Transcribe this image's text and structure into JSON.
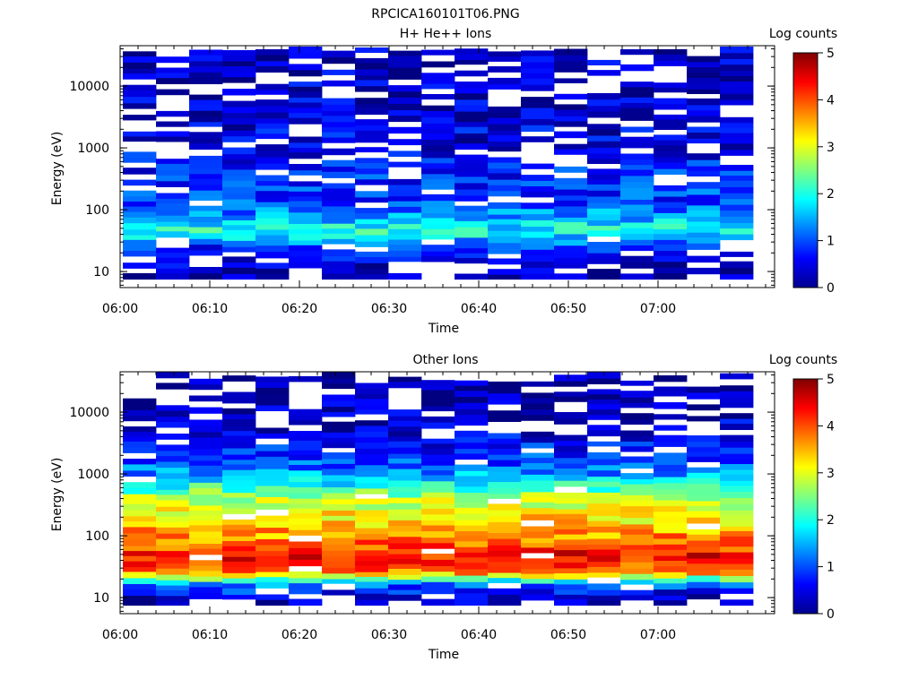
{
  "page_title": "RPCICA160101T06.PNG",
  "chart_data": [
    {
      "type": "heatmap",
      "title": "H+ He++ Ions",
      "xlabel": "Time",
      "ylabel": "Energy (eV)",
      "x_ticks": [
        "06:00",
        "06:10",
        "06:20",
        "06:30",
        "06:40",
        "06:50",
        "07:00"
      ],
      "xlim": [
        "06:00",
        "07:13"
      ],
      "yscale": "log",
      "ylim": [
        5.5,
        45000
      ],
      "y_ticks": [
        10,
        100,
        1000,
        10000
      ],
      "y_tick_labels": [
        "10",
        "100",
        "1000",
        "10000"
      ],
      "colorbar": {
        "label": "Log counts",
        "range": [
          0,
          5
        ],
        "ticks": [
          "0",
          "1",
          "2",
          "3",
          "4",
          "5"
        ]
      },
      "summary_profile": {
        "energies_eV": [
          10,
          25,
          35,
          45,
          60,
          80,
          110,
          150,
          220,
          320,
          500,
          800,
          1200,
          2000,
          3500,
          6000,
          10000,
          18000,
          30000
        ],
        "mean_log_counts": [
          0.2,
          0.8,
          1.6,
          2.0,
          1.7,
          1.4,
          1.1,
          0.9,
          0.9,
          0.8,
          0.7,
          0.6,
          0.5,
          0.5,
          0.4,
          0.4,
          0.4,
          0.3,
          0.3
        ]
      }
    },
    {
      "type": "heatmap",
      "title": "Other Ions",
      "xlabel": "Time",
      "ylabel": "Energy (eV)",
      "x_ticks": [
        "06:00",
        "06:10",
        "06:20",
        "06:30",
        "06:40",
        "06:50",
        "07:00"
      ],
      "xlim": [
        "06:00",
        "07:13"
      ],
      "yscale": "log",
      "ylim": [
        5.5,
        45000
      ],
      "y_ticks": [
        10,
        100,
        1000,
        10000
      ],
      "y_tick_labels": [
        "10",
        "100",
        "1000",
        "10000"
      ],
      "colorbar": {
        "label": "Log counts",
        "range": [
          0,
          5
        ],
        "ticks": [
          "0",
          "1",
          "2",
          "3",
          "4",
          "5"
        ]
      },
      "summary_profile": {
        "energies_eV": [
          10,
          17,
          22,
          28,
          38,
          50,
          65,
          90,
          130,
          180,
          260,
          380,
          550,
          800,
          1200,
          2000,
          3500,
          6000,
          10000,
          18000,
          30000
        ],
        "mean_log_counts": [
          0.3,
          1.3,
          3.0,
          3.8,
          4.2,
          4.4,
          4.0,
          3.7,
          3.5,
          3.3,
          3.1,
          2.8,
          2.3,
          1.7,
          1.2,
          0.9,
          0.6,
          0.4,
          0.3,
          0.2,
          0.1
        ]
      }
    }
  ]
}
